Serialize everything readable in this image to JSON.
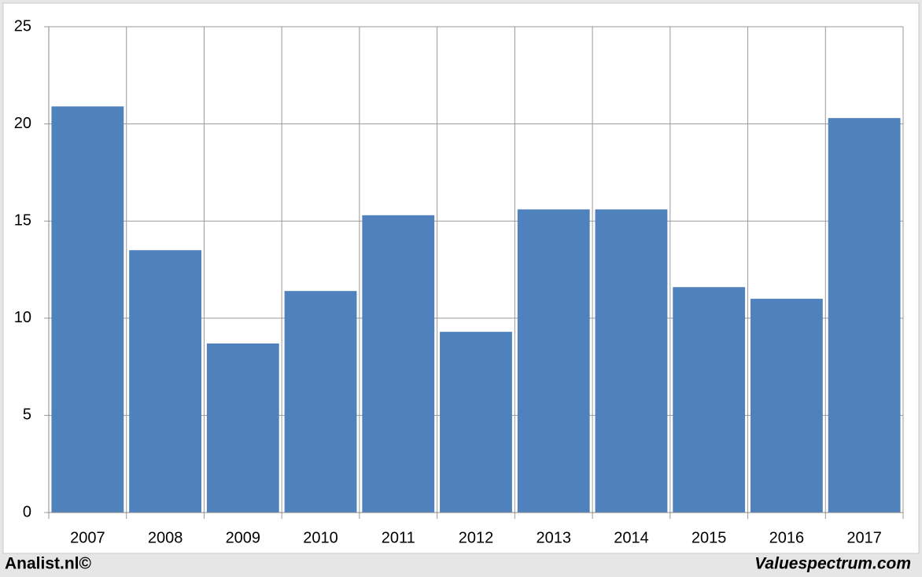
{
  "chart_data": {
    "type": "bar",
    "categories": [
      "2007",
      "2008",
      "2009",
      "2010",
      "2011",
      "2012",
      "2013",
      "2014",
      "2015",
      "2016",
      "2017"
    ],
    "values": [
      20.9,
      13.5,
      8.7,
      11.4,
      15.3,
      9.3,
      15.6,
      15.6,
      11.6,
      11.0,
      20.3
    ],
    "color": "#4f81bd",
    "ylim": [
      0,
      25
    ],
    "yticks": [
      0,
      5,
      10,
      15,
      20,
      25
    ],
    "grid": true
  },
  "footer": {
    "left": "Analist.nl©",
    "right": "Valuespectrum.com"
  }
}
